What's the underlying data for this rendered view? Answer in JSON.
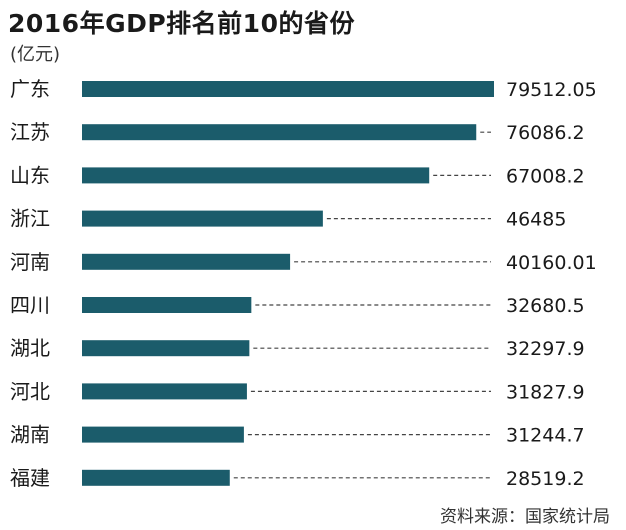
{
  "title": "2016年GDP排名前10的省份",
  "unit": "(亿元)",
  "source": "资料来源：国家统计局",
  "colors": {
    "bar": "#1b5c6b",
    "leader": "#444444",
    "text": "#1a1a1a"
  },
  "chart_data": {
    "type": "bar",
    "orientation": "horizontal",
    "title": "2016年GDP排名前10的省份",
    "ylabel": "(亿元)",
    "categories": [
      "广东",
      "江苏",
      "山东",
      "浙江",
      "河南",
      "四川",
      "湖北",
      "河北",
      "湖南",
      "福建"
    ],
    "values": [
      79512.05,
      76086.2,
      67008.2,
      46485,
      40160.01,
      32680.5,
      32297.9,
      31827.9,
      31244.7,
      28519.2
    ],
    "value_labels": [
      "79512.05",
      "76086.2",
      "67008.2",
      "46485",
      "40160.01",
      "32680.5",
      "32297.9",
      "31827.9",
      "31244.7",
      "28519.2"
    ],
    "xlim": [
      0,
      79512.05
    ],
    "grid": false,
    "leader_lines": "dashed"
  }
}
